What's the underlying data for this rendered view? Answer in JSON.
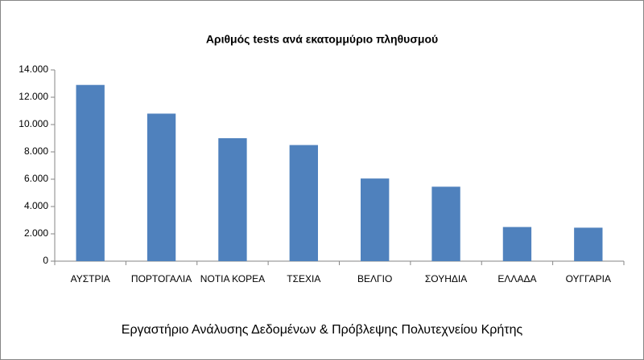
{
  "chart_data": {
    "type": "bar",
    "title": "Αριθμός tests ανά εκατομμύριο πληθυσμού",
    "categories": [
      "ΑΥΣΤΡΙΑ",
      "ΠΟΡΤΟΓΑΛΙΑ",
      "ΝΟΤΙΑ ΚΟΡΕΑ",
      "ΤΣΕΧΙΑ",
      "ΒΕΛΓΙΟ",
      "ΣΟΥΗΔΙΑ",
      "ΕΛΛΑΔΑ",
      "ΟΥΓΓΑΡΙΑ"
    ],
    "values": [
      12900,
      10800,
      9000,
      8500,
      6050,
      5450,
      2500,
      2450
    ],
    "color": "#4f81bd",
    "ylim": [
      0,
      14000
    ],
    "yticks": [
      0,
      {
        "value": 2000,
        "label": "2.000"
      },
      {
        "value": 4000,
        "label": "4.000"
      },
      {
        "value": 6000,
        "label": "6.000"
      },
      {
        "value": 8000,
        "label": "8.000"
      },
      {
        "value": 10000,
        "label": "10.000"
      },
      {
        "value": 12000,
        "label": "12.000"
      },
      {
        "value": 14000,
        "label": "14.000"
      }
    ],
    "grid": false,
    "caption": "Εργαστήριο Ανάλυσης Δεδομένων & Πρόβλεψης Πολυτεχνείου Κρήτης"
  }
}
